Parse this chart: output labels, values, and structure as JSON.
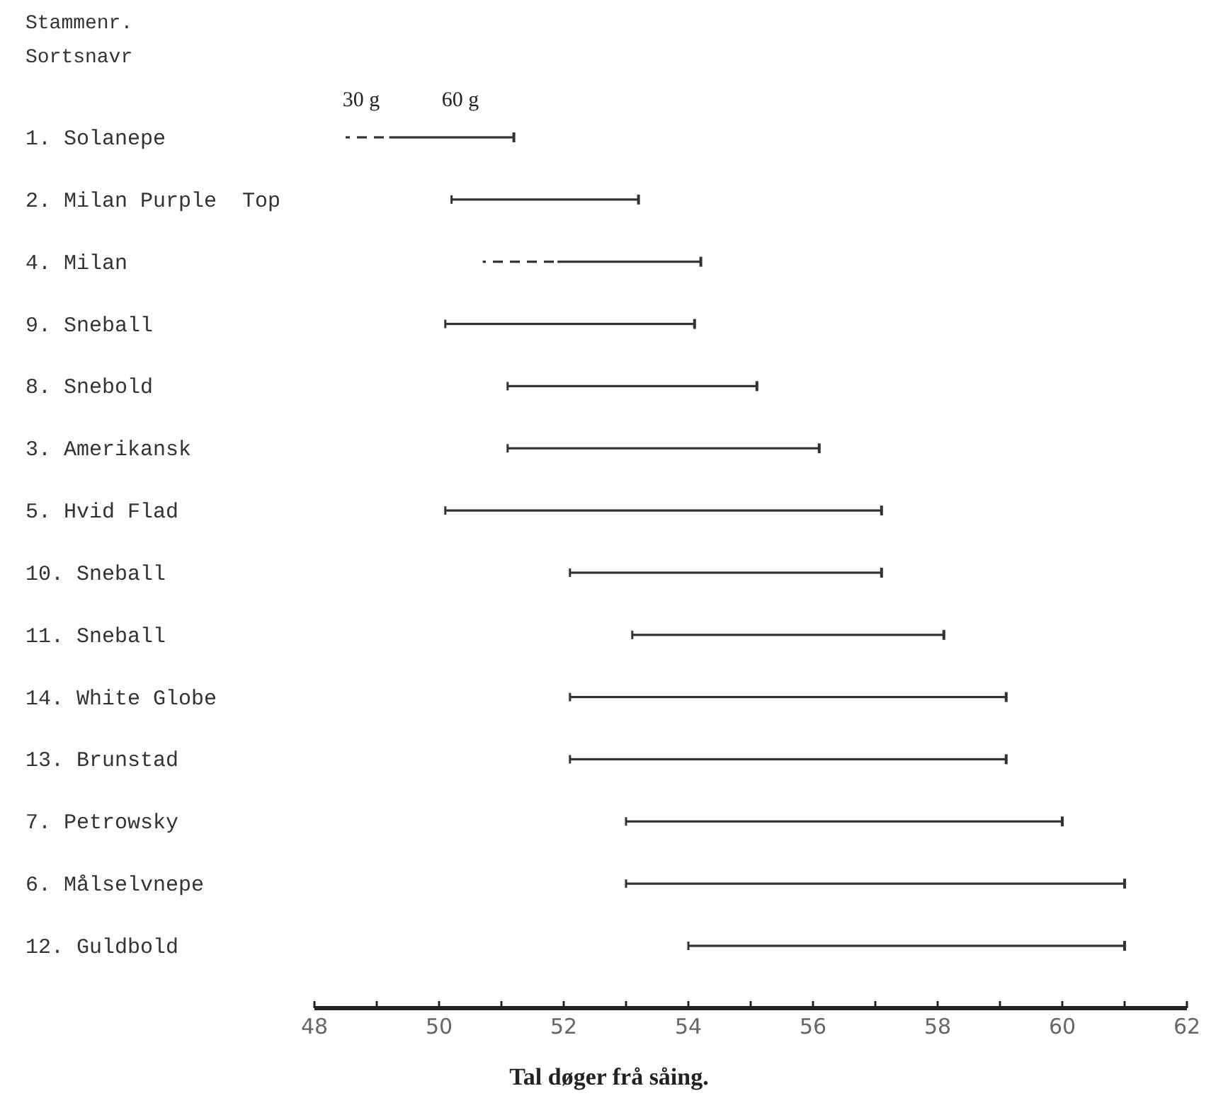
{
  "chart_data": {
    "type": "bar",
    "orientation": "horizontal",
    "annotations": [
      "Stammenr.",
      "Sortsnavr",
      "30 g",
      "60 g"
    ],
    "xlabel": "Tal døger frå såing.",
    "categories": [
      "1. Solanepe",
      "2. Milan Purple  Top",
      "4. Milan",
      "9. Sneball",
      "8. Snebold",
      "3. Amerikansk",
      "5. Hvid Flad",
      "10. Sneball",
      "11. Sneball",
      "14. White Globe",
      "13. Brunstad",
      "7. Petrowsky",
      "6. Målselvnepe",
      "12. Guldbold"
    ],
    "series": [
      {
        "color": "#333333",
        "line_style": "dashed",
        "base": [
          48.5,
          null,
          50.7,
          null,
          null,
          null,
          null,
          null,
          null,
          null,
          null,
          null,
          null,
          null
        ],
        "values": [
          0.7,
          null,
          1.2,
          null,
          null,
          null,
          null,
          null,
          null,
          null,
          null,
          null,
          null,
          null
        ]
      },
      {
        "color": "#333333",
        "line_style": "solid",
        "base": [
          49.2,
          50.2,
          51.9,
          50.1,
          51.1,
          51.1,
          50.1,
          52.1,
          53.1,
          52.1,
          52.1,
          53.0,
          53.0,
          54.0
        ],
        "values": [
          2.0,
          3.0,
          2.3,
          4.0,
          4.0,
          5.0,
          7.0,
          5.0,
          5.0,
          7.0,
          7.0,
          7.0,
          8.0,
          7.0
        ]
      }
    ],
    "xlim": [
      48,
      62
    ],
    "xticks": [
      48,
      {
        "value": 49,
        "label": null
      },
      50,
      {
        "value": 51,
        "label": null
      },
      52,
      {
        "value": 53,
        "label": null
      },
      54,
      {
        "value": 55,
        "label": null
      },
      56,
      {
        "value": 57,
        "label": null
      },
      58,
      {
        "value": 59,
        "label": null
      },
      60,
      {
        "value": 61,
        "label": null
      },
      62
    ],
    "grid": false
  }
}
